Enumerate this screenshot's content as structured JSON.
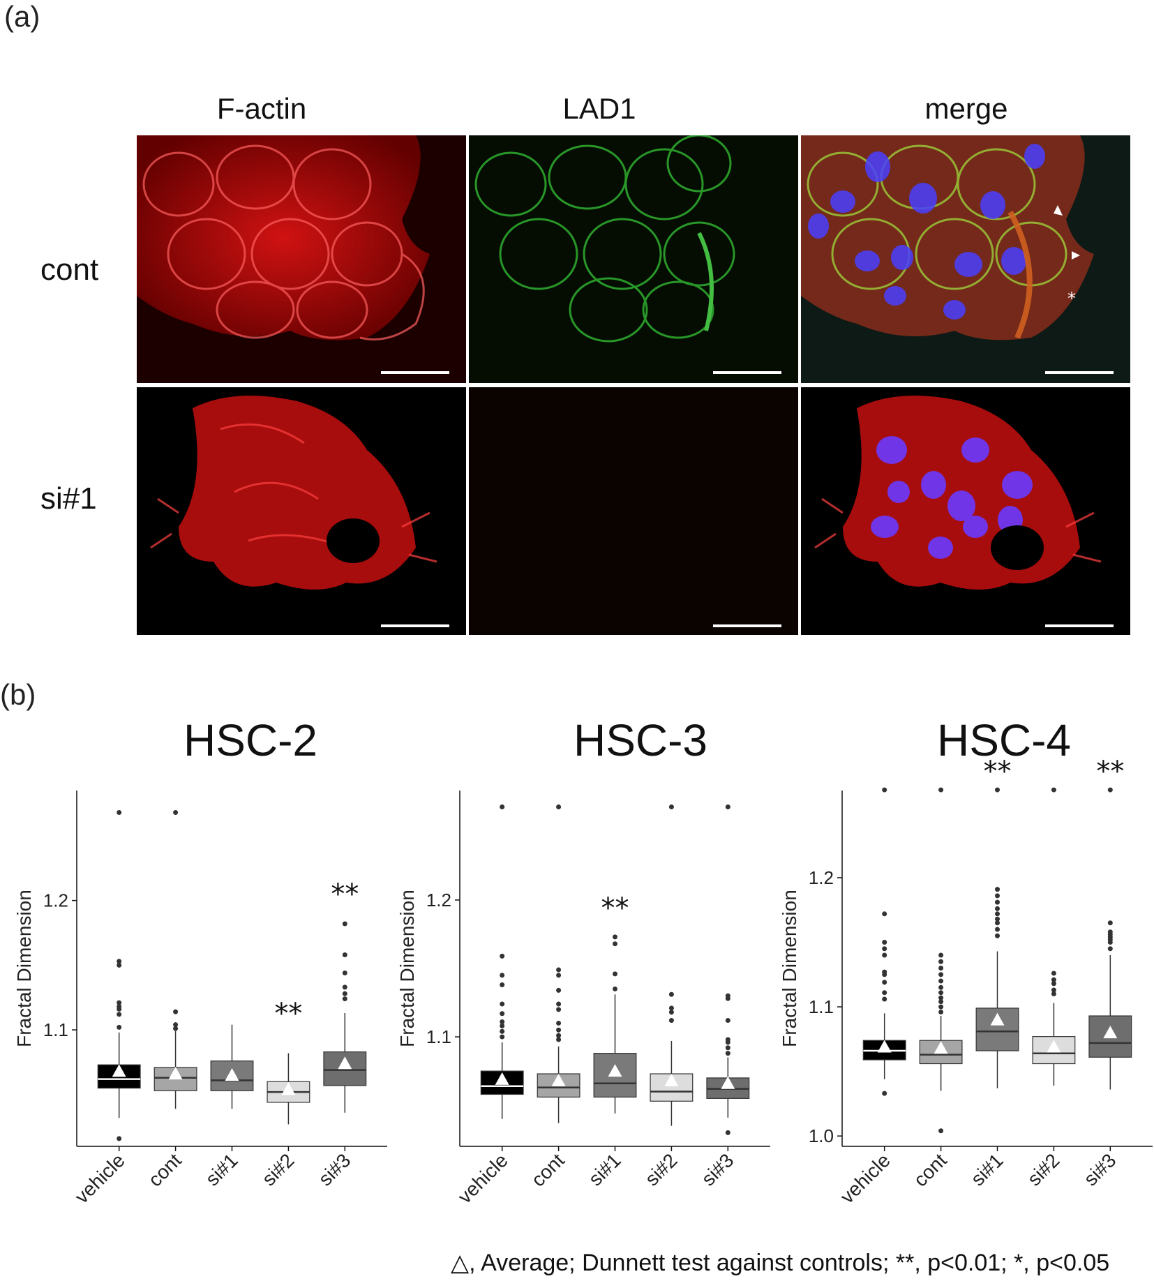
{
  "figure": {
    "panel_a_label": "(a)",
    "panel_b_label": "(b)",
    "columns": [
      "F-actin",
      "LAD1",
      "merge"
    ],
    "rows": [
      "cont",
      "si#1"
    ],
    "footnote": "△, Average; Dunnett test against controls; **, p<0.01; *, p<0.05"
  },
  "colors": {
    "vehicle": "#000000",
    "cont": "#a6a6a6",
    "si#1": "#7a7a7a",
    "si#2": "#dddddd",
    "si#3": "#6e6e6e"
  },
  "chart_data": [
    {
      "type": "box",
      "title": "HSC-2",
      "ylabel": "Fractal Dimension",
      "categories": [
        "vehicle",
        "cont",
        "si#1",
        "si#2",
        "si#3"
      ],
      "ylim": [
        1.01,
        1.285
      ],
      "yticks": [
        1.1,
        1.2
      ],
      "ytick_labels": [
        "1.1",
        "1.2"
      ],
      "boxes": [
        {
          "q1": 1.055,
          "median": 1.062,
          "q3": 1.073,
          "whislo": 1.032,
          "whishi": 1.098,
          "mean": 1.068,
          "outliers": [
            1.016,
            1.102,
            1.112,
            1.116,
            1.118,
            1.121,
            1.15,
            1.153,
            1.268
          ]
        },
        {
          "q1": 1.053,
          "median": 1.063,
          "q3": 1.071,
          "whislo": 1.039,
          "whishi": 1.099,
          "mean": 1.066,
          "outliers": [
            1.101,
            1.104,
            1.114,
            1.268
          ]
        },
        {
          "q1": 1.053,
          "median": 1.061,
          "q3": 1.076,
          "whislo": 1.039,
          "whishi": 1.104,
          "mean": 1.065,
          "outliers": []
        },
        {
          "q1": 1.044,
          "median": 1.052,
          "q3": 1.06,
          "whislo": 1.027,
          "whishi": 1.082,
          "mean": 1.054,
          "outliers": []
        },
        {
          "q1": 1.057,
          "median": 1.069,
          "q3": 1.083,
          "whislo": 1.036,
          "whishi": 1.113,
          "mean": 1.074,
          "outliers": [
            1.124,
            1.128,
            1.133,
            1.144,
            1.158,
            1.182
          ]
        }
      ],
      "annotations": [
        {
          "category": "si#2",
          "text": "**",
          "value": 1.098
        },
        {
          "category": "si#3",
          "text": "**",
          "value": 1.19
        }
      ]
    },
    {
      "type": "box",
      "title": "HSC-3",
      "ylabel": "Fractal Dimension",
      "categories": [
        "vehicle",
        "cont",
        "si#1",
        "si#2",
        "si#3"
      ],
      "ylim": [
        1.02,
        1.28
      ],
      "yticks": [
        1.1,
        1.2
      ],
      "ytick_labels": [
        "1.1",
        "1.2"
      ],
      "boxes": [
        {
          "q1": 1.058,
          "median": 1.064,
          "q3": 1.075,
          "whislo": 1.04,
          "whishi": 1.096,
          "mean": 1.069,
          "outliers": [
            1.1,
            1.104,
            1.108,
            1.111,
            1.117,
            1.124,
            1.138,
            1.145,
            1.159,
            1.268
          ]
        },
        {
          "q1": 1.056,
          "median": 1.063,
          "q3": 1.073,
          "whislo": 1.037,
          "whishi": 1.093,
          "mean": 1.068,
          "outliers": [
            1.098,
            1.101,
            1.105,
            1.11,
            1.12,
            1.124,
            1.134,
            1.145,
            1.149,
            1.268
          ]
        },
        {
          "q1": 1.056,
          "median": 1.066,
          "q3": 1.088,
          "whislo": 1.044,
          "whishi": 1.131,
          "mean": 1.075,
          "outliers": [
            1.135,
            1.146,
            1.168,
            1.173
          ]
        },
        {
          "q1": 1.053,
          "median": 1.06,
          "q3": 1.073,
          "whislo": 1.035,
          "whishi": 1.097,
          "mean": 1.068,
          "outliers": [
            1.112,
            1.118,
            1.121,
            1.131,
            1.268
          ]
        },
        {
          "q1": 1.055,
          "median": 1.062,
          "q3": 1.07,
          "whislo": 1.041,
          "whishi": 1.085,
          "mean": 1.066,
          "outliers": [
            1.03,
            1.088,
            1.092,
            1.096,
            1.098,
            1.112,
            1.128,
            1.13,
            1.268
          ]
        }
      ],
      "annotations": [
        {
          "category": "si#1",
          "text": "**",
          "value": 1.18
        }
      ]
    },
    {
      "type": "box",
      "title": "HSC-4",
      "ylabel": "Fractal Dimension",
      "categories": [
        "vehicle",
        "cont",
        "si#1",
        "si#2",
        "si#3"
      ],
      "ylim": [
        0.992,
        1.2675
      ],
      "yticks": [
        1.0,
        1.1,
        1.2
      ],
      "ytick_labels": [
        "1.0",
        "1.1",
        "1.2"
      ],
      "boxes": [
        {
          "q1": 1.059,
          "median": 1.066,
          "q3": 1.074,
          "whislo": 1.044,
          "whishi": 1.095,
          "mean": 1.069,
          "outliers": [
            1.033,
            1.106,
            1.111,
            1.119,
            1.125,
            1.127,
            1.14,
            1.145,
            1.15,
            1.172,
            1.268
          ]
        },
        {
          "q1": 1.056,
          "median": 1.063,
          "q3": 1.074,
          "whislo": 1.035,
          "whishi": 1.093,
          "mean": 1.068,
          "outliers": [
            1.004,
            1.096,
            1.1,
            1.104,
            1.107,
            1.111,
            1.115,
            1.12,
            1.125,
            1.13,
            1.135,
            1.14,
            1.268
          ]
        },
        {
          "q1": 1.066,
          "median": 1.081,
          "q3": 1.099,
          "whislo": 1.037,
          "whishi": 1.143,
          "mean": 1.09,
          "outliers": [
            1.155,
            1.16,
            1.165,
            1.168,
            1.172,
            1.176,
            1.181,
            1.186,
            1.191,
            1.268
          ]
        },
        {
          "q1": 1.056,
          "median": 1.064,
          "q3": 1.077,
          "whislo": 1.039,
          "whishi": 1.103,
          "mean": 1.069,
          "outliers": [
            1.11,
            1.113,
            1.118,
            1.121,
            1.126,
            1.268
          ]
        },
        {
          "q1": 1.061,
          "median": 1.072,
          "q3": 1.093,
          "whislo": 1.036,
          "whishi": 1.14,
          "mean": 1.08,
          "outliers": [
            1.145,
            1.15,
            1.152,
            1.154,
            1.156,
            1.158,
            1.165,
            1.268
          ]
        }
      ],
      "annotations": [
        {
          "category": "si#1",
          "text": "**",
          "value": 1.2675
        },
        {
          "category": "si#3",
          "text": "**",
          "value": 1.2675
        }
      ]
    }
  ]
}
